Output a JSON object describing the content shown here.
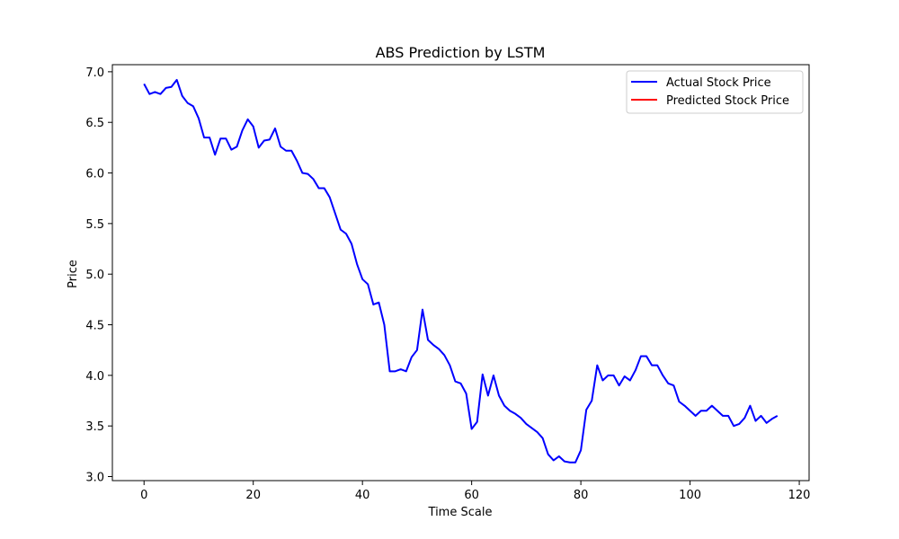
{
  "chart_data": {
    "type": "line",
    "title": "ABS Prediction by LSTM",
    "xlabel": "Time Scale",
    "ylabel": "Price",
    "xlim": [
      -5.8,
      121.8
    ],
    "ylim": [
      2.96,
      7.07
    ],
    "x_ticks": [
      0,
      20,
      40,
      60,
      80,
      100,
      120
    ],
    "y_ticks": [
      3.0,
      3.5,
      4.0,
      4.5,
      5.0,
      5.5,
      6.0,
      6.5,
      7.0
    ],
    "grid": false,
    "legend_position": "top-right",
    "series": [
      {
        "name": "Actual Stock Price",
        "color": "#0000ff",
        "values": [
          6.88,
          6.78,
          6.8,
          6.78,
          6.84,
          6.85,
          6.92,
          6.76,
          6.69,
          6.66,
          6.54,
          6.35,
          6.35,
          6.18,
          6.34,
          6.34,
          6.23,
          6.26,
          6.42,
          6.53,
          6.46,
          6.25,
          6.32,
          6.33,
          6.44,
          6.26,
          6.22,
          6.22,
          6.12,
          6.0,
          5.99,
          5.94,
          5.85,
          5.85,
          5.76,
          5.6,
          5.44,
          5.4,
          5.3,
          5.1,
          4.95,
          4.9,
          4.7,
          4.72,
          4.5,
          4.04,
          4.04,
          4.06,
          4.04,
          4.18,
          4.25,
          4.65,
          4.35,
          4.3,
          4.26,
          4.2,
          4.1,
          3.94,
          3.92,
          3.82,
          3.47,
          3.54,
          4.01,
          3.8,
          4.0,
          3.8,
          3.7,
          3.65,
          3.62,
          3.58,
          3.52,
          3.48,
          3.44,
          3.38,
          3.22,
          3.16,
          3.2,
          3.15,
          3.14,
          3.14,
          3.26,
          3.66,
          3.75,
          4.1,
          3.95,
          4.0,
          4.0,
          3.9,
          3.99,
          3.95,
          4.05,
          4.19,
          4.19,
          4.1,
          4.1,
          4.0,
          3.92,
          3.9,
          3.74,
          3.7,
          3.65,
          3.6,
          3.65,
          3.65,
          3.7,
          3.65,
          3.6,
          3.6,
          3.5,
          3.52,
          3.58,
          3.7,
          3.55,
          3.6,
          3.53,
          3.57,
          3.6
        ]
      },
      {
        "name": "Predicted Stock Price",
        "color": "#ff0000",
        "values": []
      }
    ]
  }
}
